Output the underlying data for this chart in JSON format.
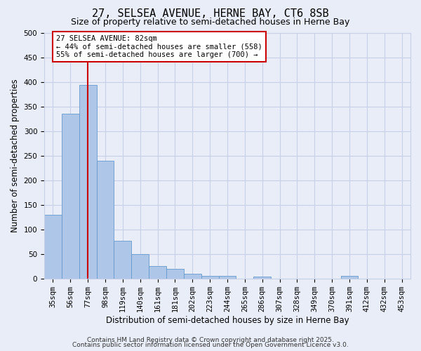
{
  "title": "27, SELSEA AVENUE, HERNE BAY, CT6 8SB",
  "subtitle": "Size of property relative to semi-detached houses in Herne Bay",
  "xlabel": "Distribution of semi-detached houses by size in Herne Bay",
  "ylabel": "Number of semi-detached properties",
  "categories": [
    "35sqm",
    "56sqm",
    "77sqm",
    "98sqm",
    "119sqm",
    "140sqm",
    "161sqm",
    "181sqm",
    "202sqm",
    "223sqm",
    "244sqm",
    "265sqm",
    "286sqm",
    "307sqm",
    "328sqm",
    "349sqm",
    "370sqm",
    "391sqm",
    "412sqm",
    "432sqm",
    "453sqm"
  ],
  "values": [
    130,
    335,
    393,
    240,
    77,
    50,
    26,
    20,
    9,
    5,
    5,
    0,
    4,
    0,
    0,
    0,
    0,
    5,
    0,
    0,
    0
  ],
  "bar_color": "#aec6e8",
  "bar_edge_color": "#6699cc",
  "vline_x": 2,
  "vline_color": "#cc0000",
  "annotation_text": "27 SELSEA AVENUE: 82sqm\n← 44% of semi-detached houses are smaller (558)\n55% of semi-detached houses are larger (700) →",
  "annotation_box_color": "#ffffff",
  "annotation_box_edge": "#cc0000",
  "ylim": [
    0,
    500
  ],
  "footer_line1": "Contains HM Land Registry data © Crown copyright and database right 2025.",
  "footer_line2": "Contains public sector information licensed under the Open Government Licence v3.0.",
  "bg_color": "#e8edf8",
  "grid_color": "#c8d0e8",
  "title_fontsize": 11,
  "subtitle_fontsize": 9,
  "axis_label_fontsize": 8.5,
  "tick_fontsize": 7.5,
  "annotation_fontsize": 7.5,
  "footer_fontsize": 6.5
}
